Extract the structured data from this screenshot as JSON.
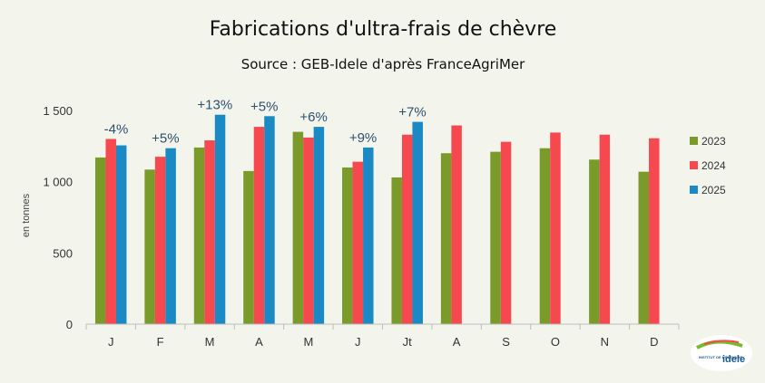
{
  "chart_data": {
    "type": "bar",
    "title": "Fabrications d'ultra-frais de chèvre",
    "subtitle": "Source : GEB-Idele d'après FranceAgriMer",
    "ylabel": "en tonnes",
    "categories": [
      "J",
      "F",
      "M",
      "A",
      "M",
      "J",
      "Jt",
      "A",
      "S",
      "O",
      "N",
      "D"
    ],
    "ylim": [
      0,
      1500
    ],
    "yticks": [
      0,
      500,
      1000,
      1500
    ],
    "ytick_labels": [
      "0",
      "500",
      "1 000",
      "1 500"
    ],
    "grid": false,
    "legend_position": "right",
    "series": [
      {
        "name": "2023",
        "color": "#7a9a2a",
        "values": [
          1170,
          1085,
          1240,
          1075,
          1350,
          1100,
          1030,
          1200,
          1210,
          1235,
          1155,
          1070
        ]
      },
      {
        "name": "2024",
        "color": "#f5484f",
        "values": [
          1300,
          1175,
          1290,
          1385,
          1310,
          1140,
          1330,
          1395,
          1280,
          1345,
          1330,
          1305
        ]
      },
      {
        "name": "2025",
        "color": "#1b8ac4",
        "values": [
          1255,
          1235,
          1470,
          1460,
          1385,
          1240,
          1420,
          null,
          null,
          null,
          null,
          null
        ]
      }
    ],
    "annotations": [
      "-4%",
      "+5%",
      "+13%",
      "+5%",
      "+6%",
      "+9%",
      "+7%"
    ]
  },
  "logo": {
    "line1": "INSTITUT DE L'ÉLEVAGE",
    "line2": "idele"
  }
}
